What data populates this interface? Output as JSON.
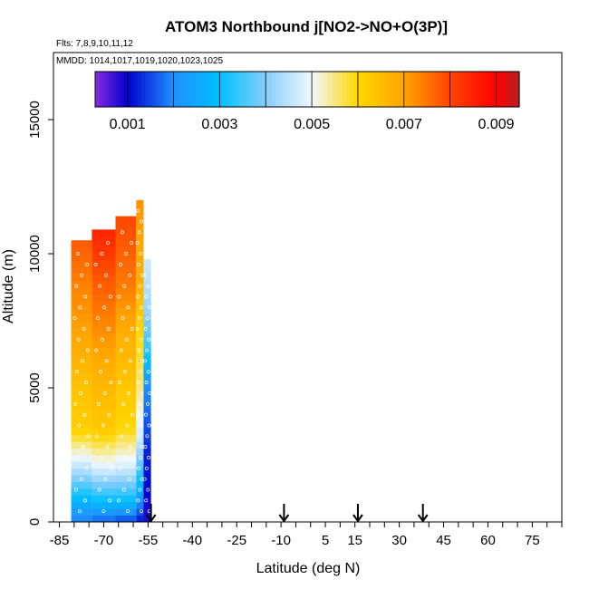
{
  "chart_data": {
    "type": "heatmap",
    "title": "ATOM3 Northbound j[NO2->NO+O(3P)]",
    "flights_note": "Flts: 7,8,9,10,11,12",
    "mmdd_note": "MMDD: 1014,1017,1019,1020,1023,1025",
    "xlabel": "Latitude (deg N)",
    "ylabel": "Altitude (m)",
    "xlim": [
      -87,
      85
    ],
    "ylim": [
      0,
      17500
    ],
    "x_ticks": [
      -85,
      -70,
      -55,
      -40,
      -25,
      -10,
      5,
      15,
      30,
      45,
      60,
      75
    ],
    "x_tick_labels": [
      "-85",
      "-70",
      "-55",
      "-40",
      "-25",
      "-10",
      "5",
      "15",
      "30",
      "45",
      "60",
      "75"
    ],
    "y_ticks": [
      0,
      5000,
      10000,
      15000
    ],
    "y_tick_labels": [
      "0",
      "5000",
      "10000",
      "15000"
    ],
    "colorbar": {
      "range": [
        0.0003,
        0.0095
      ],
      "tick_values": [
        0.001,
        0.003,
        0.005,
        0.007,
        0.009
      ],
      "tick_labels": [
        "0.001",
        "0.003",
        "0.005",
        "0.007",
        "0.009"
      ],
      "stops": [
        {
          "v": 0.0003,
          "color": "#8a2be2"
        },
        {
          "v": 0.001,
          "color": "#0000cd"
        },
        {
          "v": 0.002,
          "color": "#1e90ff"
        },
        {
          "v": 0.003,
          "color": "#00bfff"
        },
        {
          "v": 0.004,
          "color": "#87cefa"
        },
        {
          "v": 0.005,
          "color": "#f0f8ff"
        },
        {
          "v": 0.006,
          "color": "#ffd700"
        },
        {
          "v": 0.007,
          "color": "#ffa500"
        },
        {
          "v": 0.008,
          "color": "#ff4500"
        },
        {
          "v": 0.009,
          "color": "#ff0000"
        },
        {
          "v": 0.0095,
          "color": "#b22222"
        }
      ]
    },
    "arrow_latitudes": [
      -54,
      -9,
      16,
      38
    ],
    "columns": [
      {
        "lat_left": -81,
        "lat_right": -74,
        "alt_top": 10500,
        "profile": [
          [
            0,
            0.0018
          ],
          [
            800,
            0.0028
          ],
          [
            2000,
            0.0045
          ],
          [
            3500,
            0.0062
          ],
          [
            5000,
            0.0064
          ],
          [
            7000,
            0.007
          ],
          [
            9000,
            0.0074
          ],
          [
            10500,
            0.0078
          ]
        ]
      },
      {
        "lat_left": -74,
        "lat_right": -66,
        "alt_top": 10900,
        "profile": [
          [
            0,
            0.0016
          ],
          [
            800,
            0.003
          ],
          [
            2000,
            0.0048
          ],
          [
            3500,
            0.0063
          ],
          [
            5000,
            0.0066
          ],
          [
            7000,
            0.0072
          ],
          [
            9000,
            0.0078
          ],
          [
            10900,
            0.0085
          ]
        ]
      },
      {
        "lat_left": -66,
        "lat_right": -59,
        "alt_top": 11400,
        "profile": [
          [
            0,
            0.0014
          ],
          [
            800,
            0.003
          ],
          [
            2000,
            0.0047
          ],
          [
            3500,
            0.006
          ],
          [
            5000,
            0.0063
          ],
          [
            7000,
            0.0068
          ],
          [
            9000,
            0.0075
          ],
          [
            11400,
            0.008
          ]
        ]
      },
      {
        "lat_left": -59,
        "lat_right": -56.5,
        "alt_top": 12000,
        "profile": [
          [
            0,
            0.0011
          ],
          [
            1500,
            0.003
          ],
          [
            3000,
            0.0046
          ],
          [
            5000,
            0.0055
          ],
          [
            7000,
            0.006
          ],
          [
            9000,
            0.0068
          ],
          [
            12000,
            0.0072
          ]
        ]
      },
      {
        "lat_left": -56.5,
        "lat_right": -54,
        "alt_top": 9800,
        "profile": [
          [
            0,
            0.0008
          ],
          [
            2500,
            0.0012
          ],
          [
            5000,
            0.002
          ],
          [
            6500,
            0.0034
          ],
          [
            8000,
            0.0042
          ],
          [
            9800,
            0.0047
          ]
        ]
      }
    ]
  }
}
